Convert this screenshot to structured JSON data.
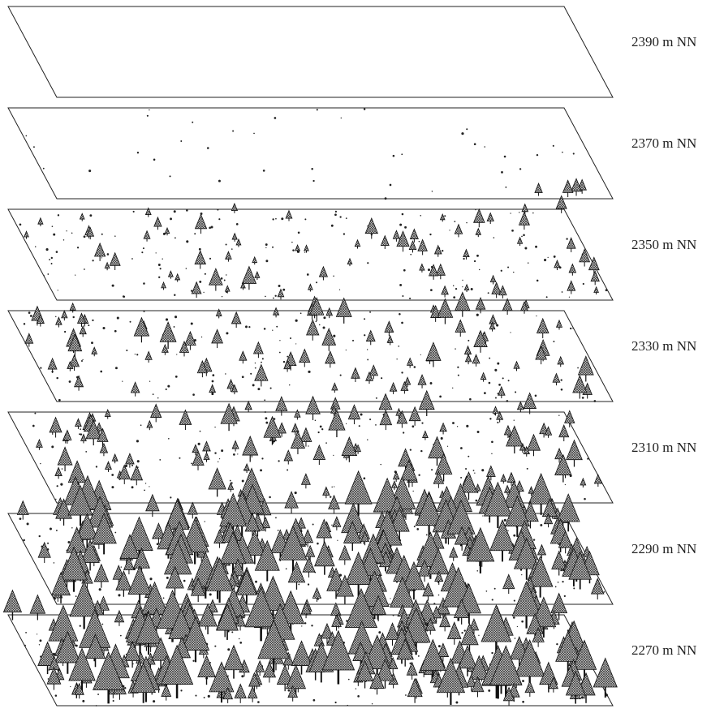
{
  "layers": [
    {
      "label": "2390 m NN"
    },
    {
      "label": "2370 m NN"
    },
    {
      "label": "2350 m NN"
    },
    {
      "label": "2330 m NN"
    },
    {
      "label": "2310 m NN"
    },
    {
      "label": "2290 m NN"
    },
    {
      "label": "2270 m NN"
    }
  ]
}
